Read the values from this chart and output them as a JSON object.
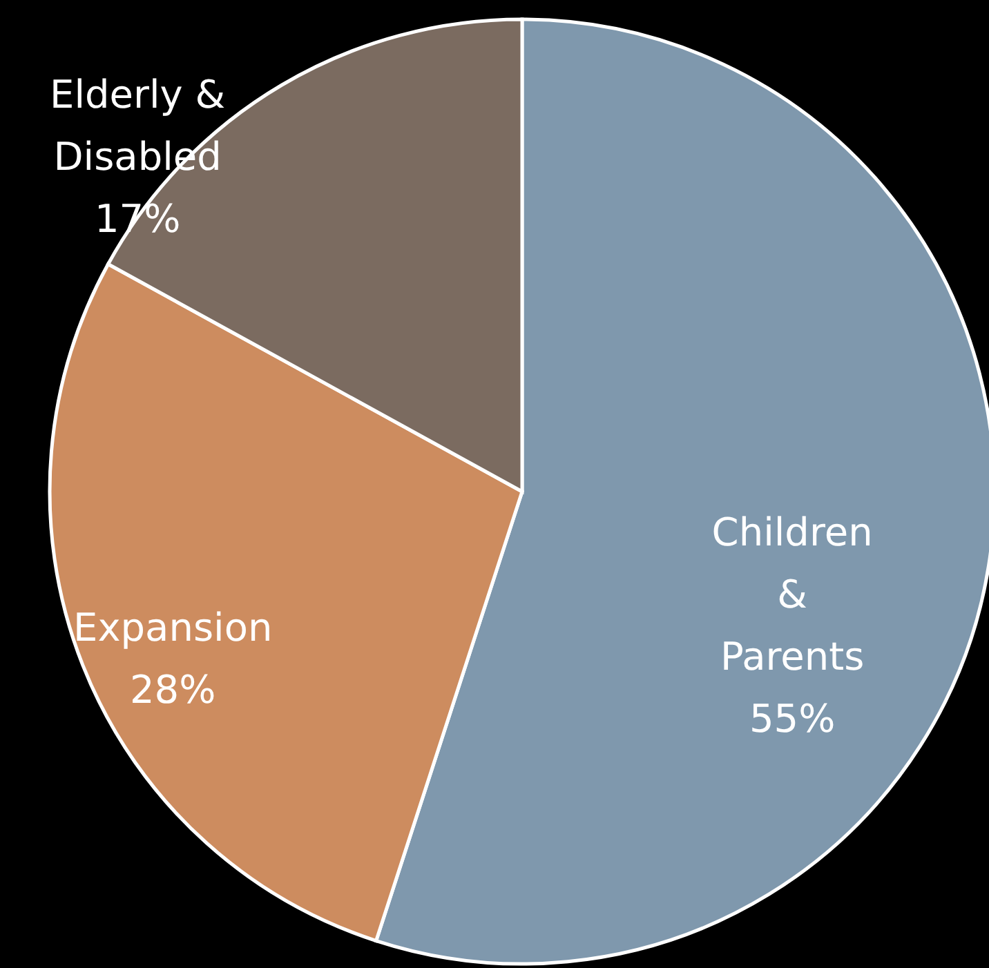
{
  "chart_data": {
    "type": "pie",
    "categories": [
      "Children\n&\nParents",
      "Expansion",
      "Elderly &\nDisabled"
    ],
    "values": [
      55,
      28,
      17
    ],
    "value_labels": [
      "55%",
      "28%",
      "17%"
    ],
    "colors": [
      "#7f98ad",
      "#cd8c5f",
      "#7b6b60"
    ]
  }
}
